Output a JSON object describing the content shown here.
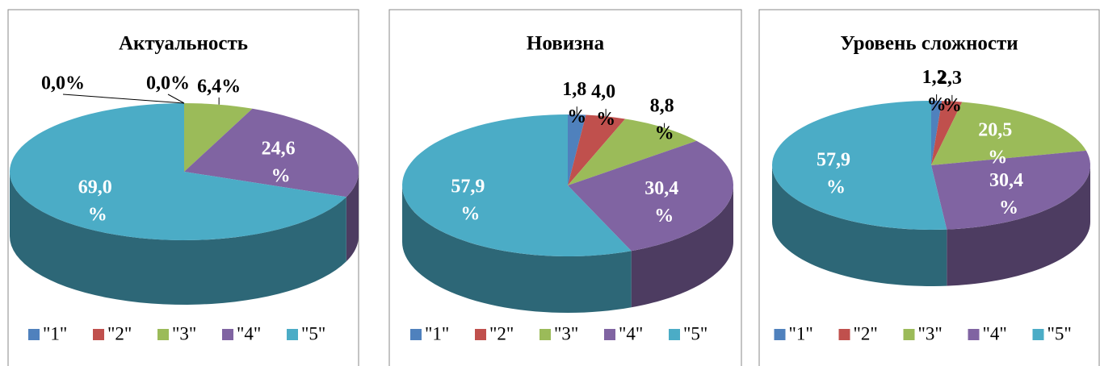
{
  "chart_data": [
    {
      "type": "pie",
      "title": "Актуальность",
      "categories": [
        "\"1\"",
        "\"2\"",
        "\"3\"",
        "\"4\"",
        "\"5\""
      ],
      "values": [
        0.0,
        0.0,
        6.4,
        24.6,
        69.0
      ],
      "value_labels": [
        "0,0%",
        "0,0%",
        "6,4%",
        "24,6 %",
        "69,0 %"
      ],
      "colors": [
        "#4f81bd",
        "#c0504d",
        "#9bbb59",
        "#8064a2",
        "#4bacc6"
      ],
      "legend": "bottom"
    },
    {
      "type": "pie",
      "title": "Новизна",
      "categories": [
        "\"1\"",
        "\"2\"",
        "\"3\"",
        "\"4\"",
        "\"5\""
      ],
      "values": [
        1.8,
        4.0,
        8.8,
        30.4,
        57.9
      ],
      "value_labels": [
        "1,8 %",
        "4,0 %",
        "8,8 %",
        "30,4 %",
        "57,9 %"
      ],
      "colors": [
        "#4f81bd",
        "#c0504d",
        "#9bbb59",
        "#8064a2",
        "#4bacc6"
      ],
      "legend": "bottom"
    },
    {
      "type": "pie",
      "title": "Уровень сложности",
      "categories": [
        "\"1\"",
        "\"2\"",
        "\"3\"",
        "\"4\"",
        "\"5\""
      ],
      "values": [
        1.2,
        2.3,
        20.5,
        30.4,
        57.9
      ],
      "value_labels": [
        "1,2 %",
        "2,3 %",
        "20,5 %",
        "30,4 %",
        "57,9 %"
      ],
      "colors": [
        "#4f81bd",
        "#c0504d",
        "#9bbb59",
        "#8064a2",
        "#4bacc6"
      ],
      "legend": "bottom"
    }
  ]
}
